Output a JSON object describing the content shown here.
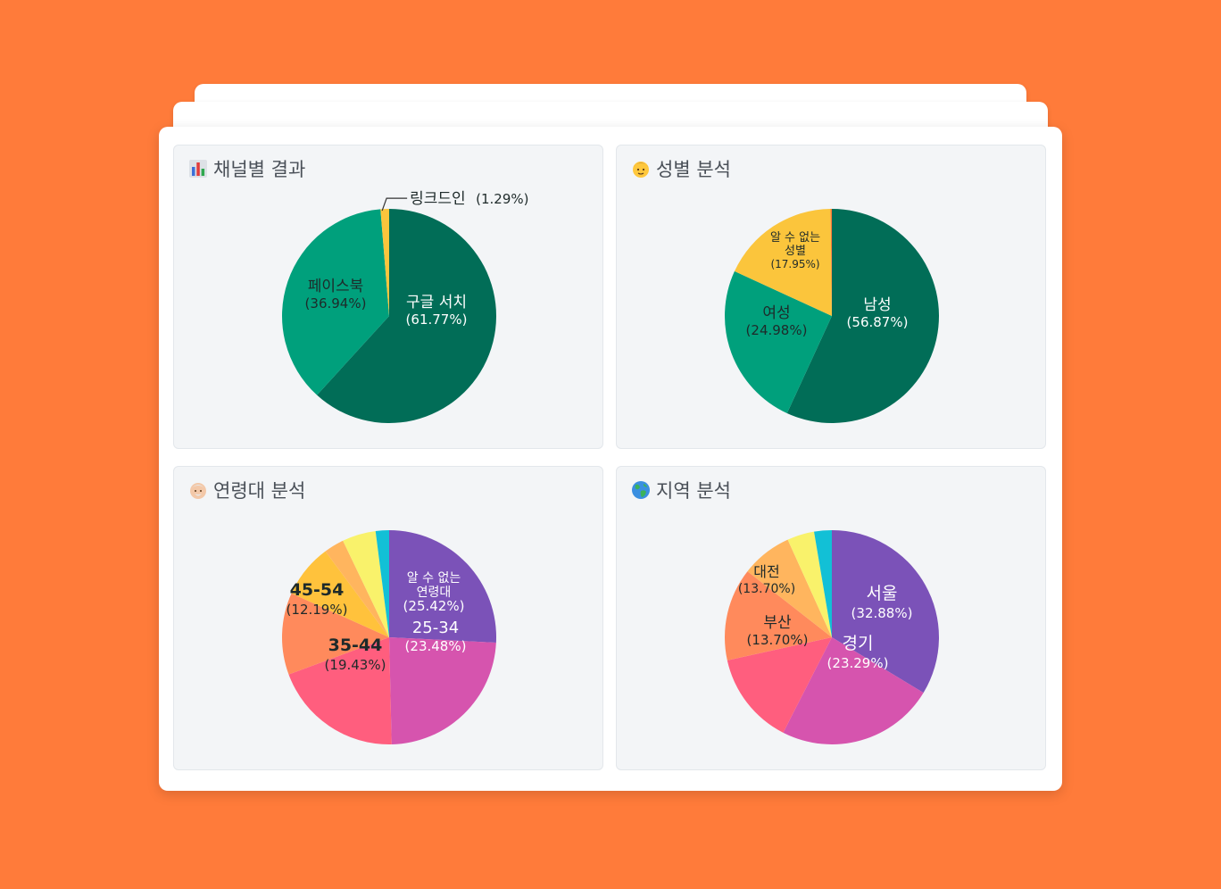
{
  "panels": [
    {
      "title": "채널별 결과",
      "icon": "bar-chart-icon"
    },
    {
      "title": "성별 분석",
      "icon": "man-face-icon"
    },
    {
      "title": "연령대 분석",
      "icon": "old-man-face-icon"
    },
    {
      "title": "지역 분석",
      "icon": "globe-icon"
    }
  ],
  "chart_data": [
    {
      "type": "pie",
      "title": "채널별 결과",
      "slices": [
        {
          "label": "구글 서치",
          "value": 61.77,
          "pct": "(61.77%)",
          "color": "#016D57"
        },
        {
          "label": "페이스북",
          "value": 36.94,
          "pct": "(36.94%)",
          "color": "#00A07C"
        },
        {
          "label": "링크드인",
          "value": 1.29,
          "pct": "(1.29%)",
          "color": "#FBC53C"
        }
      ]
    },
    {
      "type": "pie",
      "title": "성별 분석",
      "slices": [
        {
          "label": "남성",
          "value": 56.87,
          "pct": "(56.87%)",
          "color": "#016D57"
        },
        {
          "label": "여성",
          "value": 24.98,
          "pct": "(24.98%)",
          "color": "#00A07C"
        },
        {
          "label": "알 수 없는 성별",
          "value": 17.95,
          "pct": "(17.95%)",
          "color": "#FBC53C"
        },
        {
          "label": "",
          "value": 0.2,
          "pct": "",
          "color": "#FF7B3A"
        }
      ]
    },
    {
      "type": "pie",
      "title": "연령대 분석",
      "slices": [
        {
          "label": "알 수 없는 연령대",
          "value": 25.42,
          "pct": "(25.42%)",
          "color": "#7B52B8"
        },
        {
          "label": "25-34",
          "value": 23.48,
          "pct": "(23.48%)",
          "color": "#D654AE"
        },
        {
          "label": "35-44",
          "value": 19.43,
          "pct": "(19.43%)",
          "color": "#FF5E7E"
        },
        {
          "label": "45-54",
          "value": 12.19,
          "pct": "(12.19%)",
          "color": "#FF8A5C"
        },
        {
          "label": "",
          "value": 8.0,
          "pct": "",
          "color": "#FFC23C"
        },
        {
          "label": "",
          "value": 3.0,
          "pct": "",
          "color": "#FFB55E"
        },
        {
          "label": "",
          "value": 5.0,
          "pct": "",
          "color": "#F9F26B"
        },
        {
          "label": "",
          "value": 2.0,
          "pct": "",
          "color": "#12C0D6"
        }
      ]
    },
    {
      "type": "pie",
      "title": "지역 분석",
      "slices": [
        {
          "label": "서울",
          "value": 32.88,
          "pct": "(32.88%)",
          "color": "#7B52B8"
        },
        {
          "label": "경기",
          "value": 23.29,
          "pct": "(23.29%)",
          "color": "#D654AE"
        },
        {
          "label": "부산",
          "value": 13.7,
          "pct": "(13.70%)",
          "color": "#FF5E7E"
        },
        {
          "label": "대전",
          "value": 13.7,
          "pct": "(13.70%)",
          "color": "#FF8A5C"
        },
        {
          "label": "",
          "value": 7.5,
          "pct": "",
          "color": "#FFB55E"
        },
        {
          "label": "",
          "value": 4.0,
          "pct": "",
          "color": "#F9F26B"
        },
        {
          "label": "",
          "value": 2.6,
          "pct": "",
          "color": "#12C0D6"
        }
      ]
    }
  ]
}
